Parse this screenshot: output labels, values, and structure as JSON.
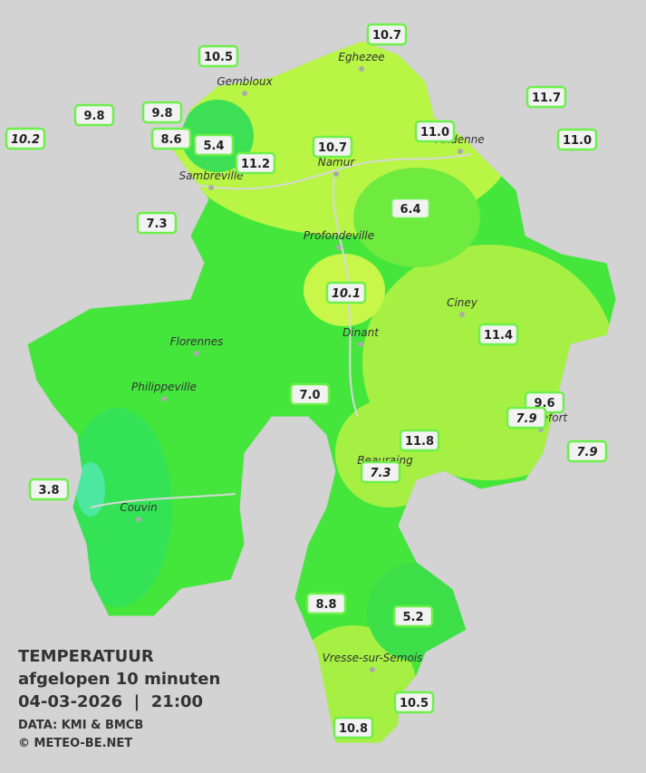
{
  "title": "TEMPERATUUR",
  "subtitle": "afgelopen 10 minuten",
  "datetime": "04-03-2026  |  21:00",
  "source": "DATA: KMI & BMCB",
  "credit": "© METEO-BE.NET",
  "places": [
    "Eghezee",
    "Gembloux",
    "Andenne",
    "Namur",
    "Sambreville",
    "Profondeville",
    "Ciney",
    "Dinant",
    "Florennes",
    "Philippeville",
    "Rochefort",
    "Beauraing",
    "Couvin",
    "Vresse-sur-Semois"
  ],
  "stations": [
    {
      "value": "10.7"
    },
    {
      "value": "10.5"
    },
    {
      "value": "11.7"
    },
    {
      "value": "9.8"
    },
    {
      "value": "9.8"
    },
    {
      "value": "10.2",
      "italic": true
    },
    {
      "value": "8.6"
    },
    {
      "value": "5.4"
    },
    {
      "value": "11.2"
    },
    {
      "value": "10.7"
    },
    {
      "value": "11.0"
    },
    {
      "value": "11.0"
    },
    {
      "value": "6.4"
    },
    {
      "value": "7.3"
    },
    {
      "value": "10.1",
      "italic": true
    },
    {
      "value": "11.4"
    },
    {
      "value": "7.0"
    },
    {
      "value": "9.6"
    },
    {
      "value": "7.9",
      "italic": true
    },
    {
      "value": "7.9",
      "italic": true
    },
    {
      "value": "11.8"
    },
    {
      "value": "7.3",
      "italic": true
    },
    {
      "value": "3.8"
    },
    {
      "value": "8.8"
    },
    {
      "value": "5.2"
    },
    {
      "value": "10.5"
    },
    {
      "value": "10.8"
    }
  ]
}
